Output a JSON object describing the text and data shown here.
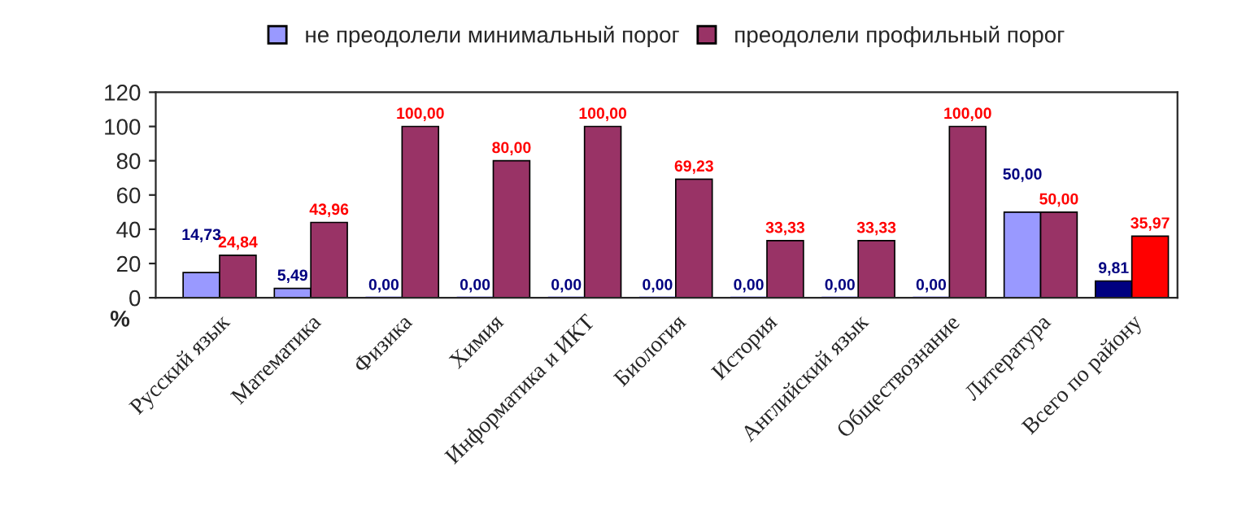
{
  "chart_data": {
    "type": "bar",
    "categories": [
      "Русский язык",
      "Математика",
      "Физика",
      "Химия",
      "Информатика и ИКТ",
      "Биология",
      "История",
      "Английский язык",
      "Обществознание",
      "Литература",
      "Всего по району"
    ],
    "series": [
      {
        "name": "не преодолели минимальный порог",
        "color": "#9999ff",
        "colors": [
          "#9999ff",
          "#9999ff",
          "#9999ff",
          "#9999ff",
          "#9999ff",
          "#9999ff",
          "#9999ff",
          "#9999ff",
          "#9999ff",
          "#9999ff",
          "#000080"
        ],
        "values": [
          14.73,
          5.49,
          0,
          0,
          0,
          0,
          0,
          0,
          0,
          50,
          9.81
        ],
        "value_labels": [
          "14,73",
          "5,49",
          "0,00",
          "0,00",
          "0,00",
          "0,00",
          "0,00",
          "0,00",
          "0,00",
          "50,00",
          "9,81"
        ]
      },
      {
        "name": "преодолели профильный порог",
        "color": "#993366",
        "colors": [
          "#993366",
          "#993366",
          "#993366",
          "#993366",
          "#993366",
          "#993366",
          "#993366",
          "#993366",
          "#993366",
          "#993366",
          "#ff0000"
        ],
        "values": [
          24.84,
          43.96,
          100,
          80,
          100,
          69.23,
          33.33,
          33.33,
          100,
          50,
          35.97
        ],
        "value_labels": [
          "24,84",
          "43,96",
          "100,00",
          "80,00",
          "100,00",
          "69,23",
          "33,33",
          "33,33",
          "100,00",
          "50,00",
          "35,97"
        ]
      }
    ],
    "ylabel": "%",
    "ylim": [
      0,
      120
    ],
    "yticks": [
      0,
      20,
      40,
      60,
      80,
      100,
      120
    ],
    "grid": false,
    "legend": "top"
  }
}
